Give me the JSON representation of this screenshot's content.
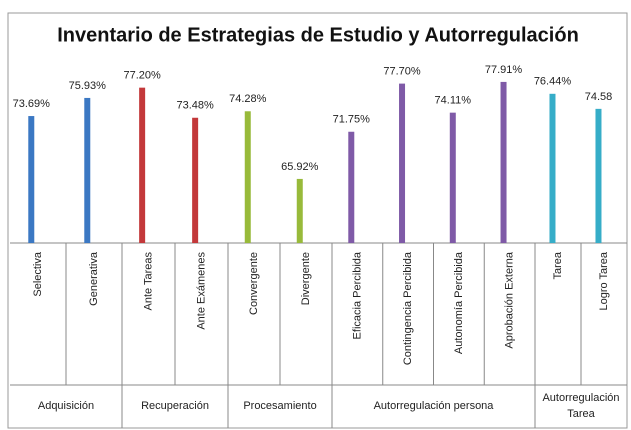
{
  "chart_data": {
    "type": "bar",
    "title": "Inventario de Estrategias de Estudio y Autorregulación",
    "categories": [
      "Selectiva",
      "Generativa",
      "Ante Tareas",
      "Ante Exámenes",
      "Convergente",
      "Divergente",
      "Eficacia Percibida",
      "Contingencia Percibida",
      "Autonomía Percibida",
      "Aprobación Externa",
      "Tarea",
      "Logro Tarea"
    ],
    "values": [
      73.69,
      75.93,
      77.2,
      73.48,
      74.28,
      65.92,
      71.75,
      77.7,
      74.11,
      77.91,
      76.44,
      74.58
    ],
    "value_labels": [
      "73.69%",
      "75.93%",
      "77.20%",
      "73.48%",
      "74.28%",
      "65.92%",
      "71.75%",
      "77.70%",
      "74.11%",
      "77.91%",
      "76.44%",
      "74.58"
    ],
    "colors": [
      "#3b78c3",
      "#3b78c3",
      "#c3383a",
      "#c3383a",
      "#98ba3a",
      "#98ba3a",
      "#7f5aa7",
      "#7f5aa7",
      "#7f5aa7",
      "#7f5aa7",
      "#36adc8",
      "#36adc8"
    ],
    "groups": [
      "Adquisición",
      "Recuperación",
      "Procesamiento",
      "Autorregulación persona",
      "Autorregulación Tarea"
    ],
    "ylim": [
      58,
      80
    ]
  }
}
